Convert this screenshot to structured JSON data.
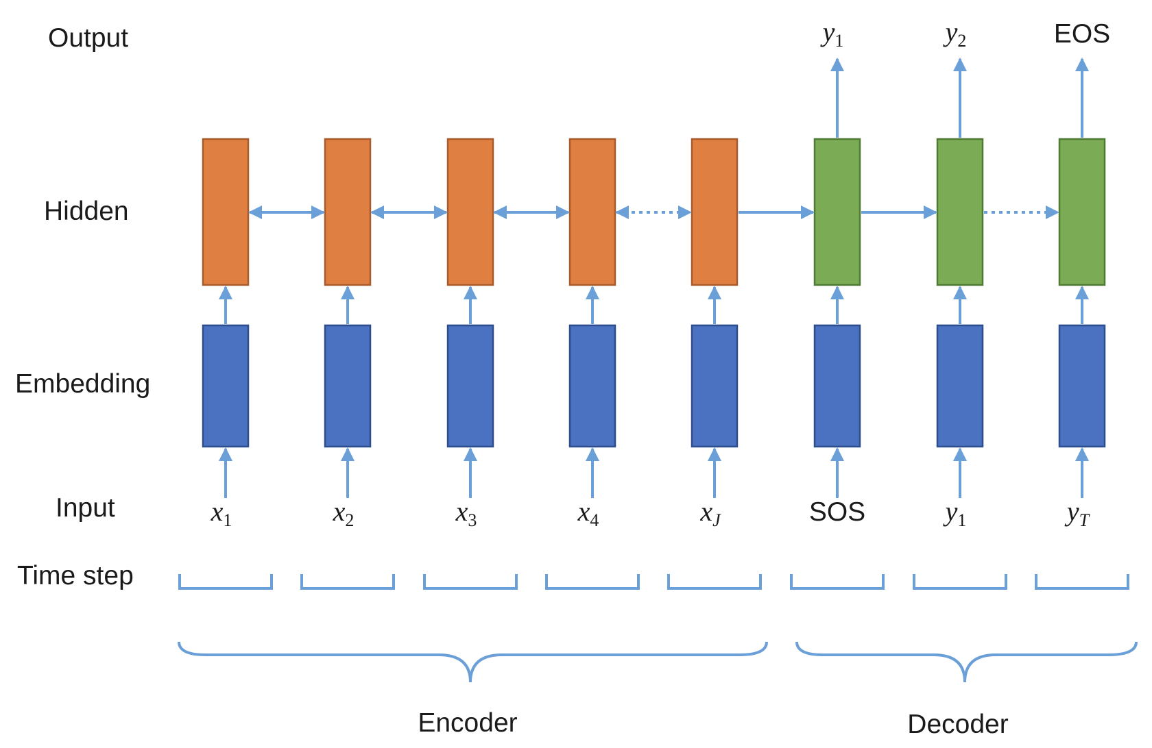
{
  "row_labels": {
    "output": "Output",
    "hidden": "Hidden",
    "embedding": "Embedding",
    "input": "Input",
    "time_step": "Time step"
  },
  "groups": {
    "encoder": "Encoder",
    "decoder": "Decoder"
  },
  "colors": {
    "encoder_hidden": "#e07f42",
    "decoder_hidden": "#7bab55",
    "embedding": "#4a72c0",
    "encoder_hidden_border": "#a85a2a",
    "decoder_hidden_border": "#4f7a33",
    "embedding_border": "#2e4d8c",
    "arrow": "#6a9fd7"
  },
  "columns": [
    {
      "role": "encoder",
      "input": {
        "base": "x",
        "sub": "1"
      },
      "output": null
    },
    {
      "role": "encoder",
      "input": {
        "base": "x",
        "sub": "2"
      },
      "output": null
    },
    {
      "role": "encoder",
      "input": {
        "base": "x",
        "sub": "3"
      },
      "output": null
    },
    {
      "role": "encoder",
      "input": {
        "base": "x",
        "sub": "4"
      },
      "output": null
    },
    {
      "role": "encoder",
      "input": {
        "base": "x",
        "sub": "J"
      },
      "output": null
    },
    {
      "role": "decoder",
      "input": {
        "plain": "SOS"
      },
      "output": {
        "base": "y",
        "sub": "1"
      }
    },
    {
      "role": "decoder",
      "input": {
        "base": "y",
        "sub": "1"
      },
      "output": {
        "base": "y",
        "sub": "2"
      }
    },
    {
      "role": "decoder",
      "input": {
        "base": "y",
        "sub": "T"
      },
      "output": {
        "plain": "EOS"
      }
    }
  ],
  "connections": [
    {
      "type": "bidirectional"
    },
    {
      "type": "bidirectional"
    },
    {
      "type": "bidirectional"
    },
    {
      "type": "dotted-bidirectional"
    },
    {
      "type": "forward"
    },
    {
      "type": "forward"
    },
    {
      "type": "dotted-forward"
    }
  ]
}
